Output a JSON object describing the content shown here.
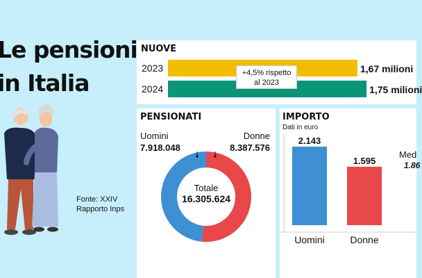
{
  "title": {
    "line1": "Le pensioni",
    "line2": "in Italia"
  },
  "source": {
    "line1": "Fonte: XXIV",
    "line2": "Rapporto Inps"
  },
  "colors": {
    "background": "#c6effb",
    "yellow": "#f2bd00",
    "green": "#0a9577",
    "blue": "#3f8fd4",
    "red": "#e8484a"
  },
  "chart_data": [
    {
      "type": "bar",
      "title": "NUOVE",
      "categories": [
        "2023",
        "2024"
      ],
      "values": [
        1.67,
        1.75
      ],
      "value_labels": [
        "1,67 milioni",
        "1,75 milioni"
      ],
      "annotation": {
        "line1": "+4,5% rispetto",
        "line2": "al 2023"
      }
    },
    {
      "type": "pie",
      "title": "PENSIONATI",
      "categories": [
        "Uomini",
        "Donne"
      ],
      "values": [
        7918048,
        8387576
      ],
      "value_labels": [
        "7.918.048",
        "8.387.576"
      ],
      "total_label": "Totale",
      "total_value": "16.305.624"
    },
    {
      "type": "bar",
      "title": "IMPORTO",
      "subtitle": "Dati in euro",
      "categories": [
        "Uomini",
        "Donne"
      ],
      "values": [
        2143,
        1595
      ],
      "value_labels": [
        "2.143",
        "1.595"
      ],
      "extra_label": "Med",
      "extra_value": "1.86"
    }
  ]
}
